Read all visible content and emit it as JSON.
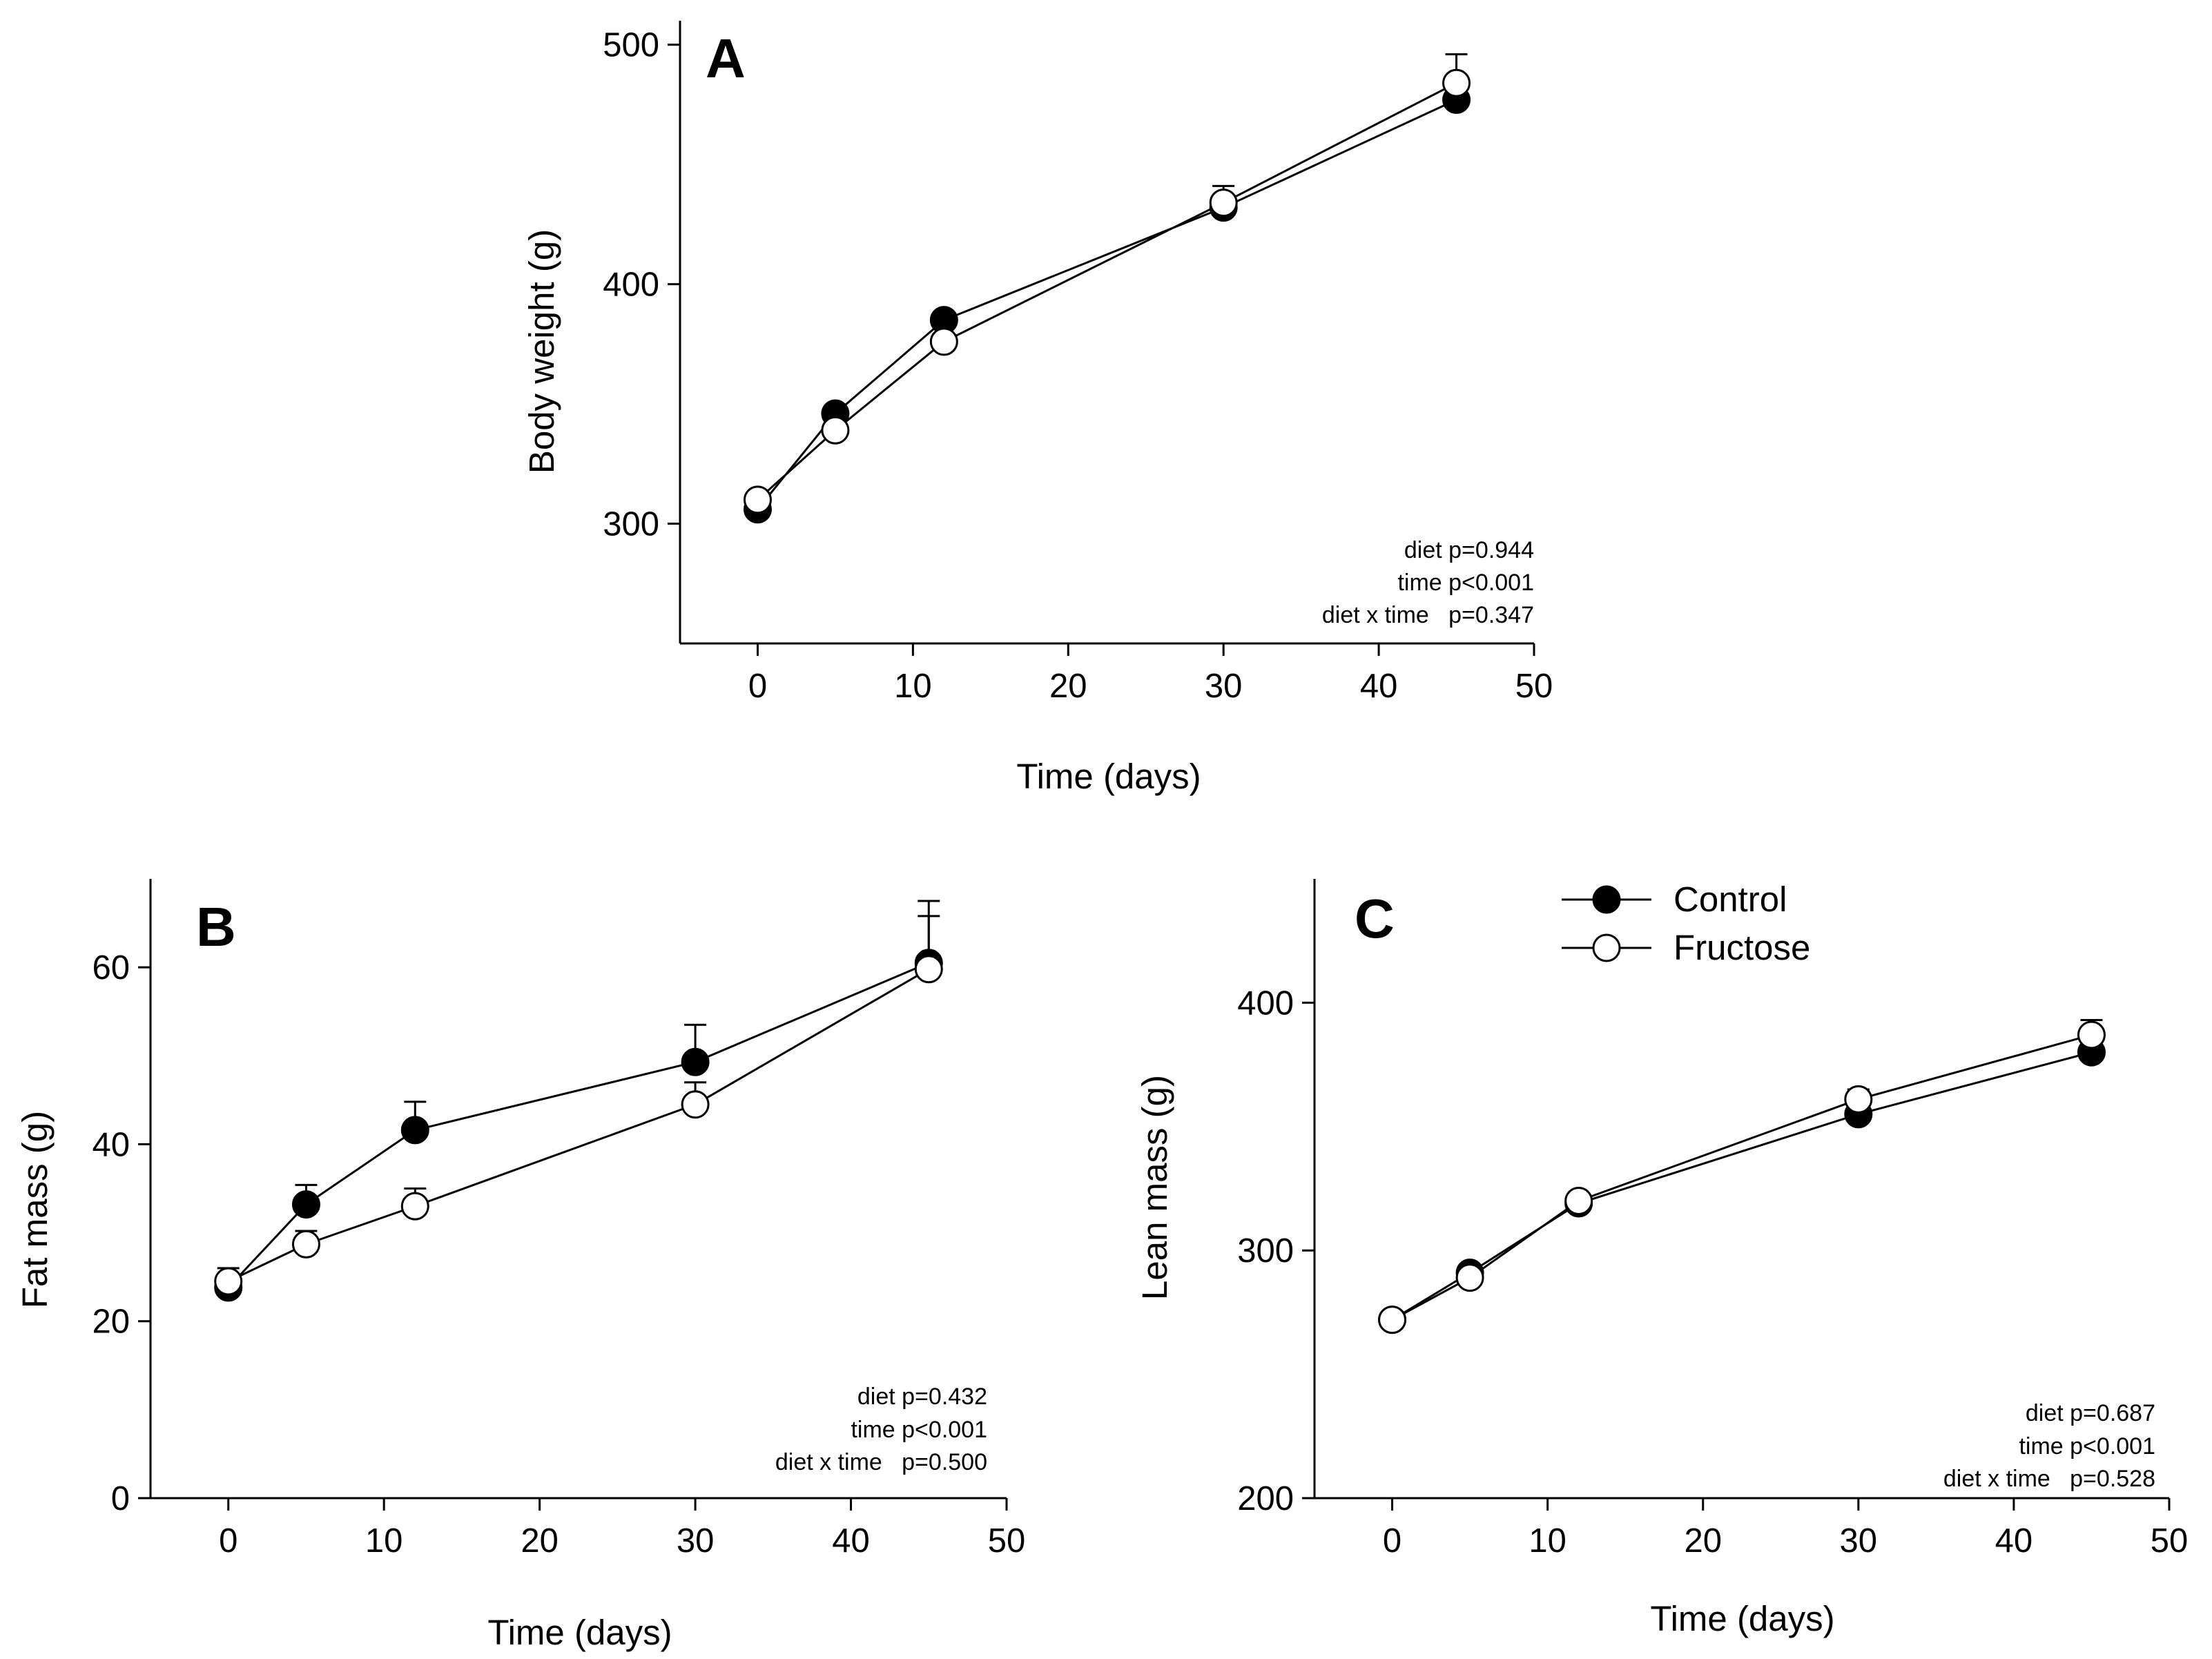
{
  "legend": {
    "placement": "top-right of panel B/C row",
    "entries": [
      {
        "label": "Control",
        "marker": "filled-circle",
        "color": "#000000"
      },
      {
        "label": "Fructose",
        "marker": "open-circle",
        "color": "#000000"
      }
    ]
  },
  "chart_data": [
    {
      "type": "line",
      "panel": "A",
      "xlabel": "Time (days)",
      "ylabel": "Body weight (g)",
      "xlim": [
        -5,
        50
      ],
      "ylim": [
        250,
        510
      ],
      "xticks": [
        0,
        10,
        20,
        30,
        40,
        50
      ],
      "yticks": [
        300,
        400,
        500
      ],
      "x": [
        0,
        5,
        12,
        30,
        45
      ],
      "series": [
        {
          "name": "Control",
          "marker": "filled",
          "values": [
            306,
            346,
            385,
            432,
            477
          ],
          "errors": [
            3,
            3,
            3,
            4,
            9
          ]
        },
        {
          "name": "Fructose",
          "marker": "open",
          "values": [
            310,
            339,
            376,
            434,
            484
          ],
          "errors": [
            3,
            3,
            3,
            7,
            12
          ]
        }
      ],
      "stats": [
        "diet p=0.944",
        "time p<0.001",
        "diet x time   p=0.347"
      ]
    },
    {
      "type": "line",
      "panel": "B",
      "xlabel": "Time (days)",
      "ylabel": "Fat mass (g)",
      "xlim": [
        -5,
        50
      ],
      "ylim": [
        0,
        70
      ],
      "xticks": [
        0,
        10,
        20,
        30,
        40,
        50
      ],
      "yticks": [
        0,
        20,
        40,
        60
      ],
      "x": [
        0,
        5,
        12,
        30,
        45
      ],
      "series": [
        {
          "name": "Control",
          "marker": "filled",
          "values": [
            23.8,
            33.2,
            41.6,
            49.3,
            60.5
          ],
          "errors": [
            1.5,
            2.2,
            3.2,
            4.2,
            7.0
          ]
        },
        {
          "name": "Fructose",
          "marker": "open",
          "values": [
            24.5,
            28.7,
            33.0,
            44.5,
            59.8
          ],
          "errors": [
            1.5,
            1.5,
            2.0,
            2.5,
            6.0
          ]
        }
      ],
      "stats": [
        "diet p=0.432",
        "time p<0.001",
        "diet x time   p=0.500"
      ]
    },
    {
      "type": "line",
      "panel": "C",
      "xlabel": "Time (days)",
      "ylabel": "Lean mass (g)",
      "xlim": [
        -5,
        50
      ],
      "ylim": [
        200,
        450
      ],
      "xticks": [
        0,
        10,
        20,
        30,
        40,
        50
      ],
      "yticks": [
        200,
        300,
        400
      ],
      "x": [
        0,
        5,
        12,
        30,
        45
      ],
      "series": [
        {
          "name": "Control",
          "marker": "filled",
          "values": [
            272,
            291,
            319,
            355,
            380
          ],
          "errors": [
            2,
            2,
            3,
            4,
            6
          ]
        },
        {
          "name": "Fructose",
          "marker": "open",
          "values": [
            272,
            289,
            320,
            361,
            387
          ],
          "errors": [
            2,
            2,
            3,
            4,
            6
          ]
        }
      ],
      "stats": [
        "diet p=0.687",
        "time p<0.001",
        "diet x time   p=0.528"
      ]
    }
  ]
}
